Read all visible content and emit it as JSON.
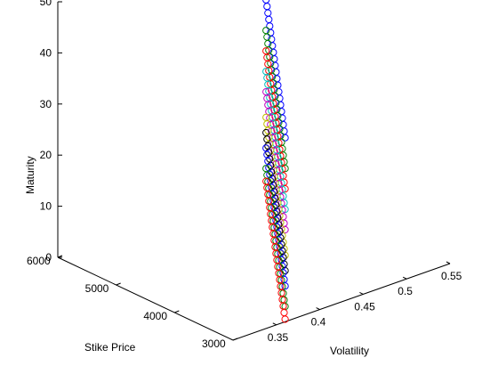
{
  "chart_data": {
    "type": "scatter3d",
    "grid": false,
    "marker": "open-circle",
    "axes": {
      "x": {
        "label": "Stike Price",
        "lim": [
          3000,
          6000
        ],
        "ticks": [
          "3000",
          "4000",
          "5000",
          "6000"
        ]
      },
      "y": {
        "label": "Volatility",
        "lim": [
          0.3,
          0.55
        ],
        "ticks": [
          "0.35",
          "0.4",
          "0.45",
          "0.5",
          "0.55"
        ]
      },
      "z": {
        "label": "Maturity",
        "lim": [
          0,
          50
        ],
        "ticks": [
          "0",
          "10",
          "20",
          "30",
          "40",
          "50"
        ]
      }
    },
    "series": [
      {
        "color": "#0000ff",
        "strike": [
          3000,
          6000
        ],
        "volatility": [
          0.36,
          0.54
        ],
        "maturity": [
          36,
          36
        ]
      },
      {
        "color": "#008000",
        "strike": [
          3000,
          6000
        ],
        "volatility": [
          0.36,
          0.54
        ],
        "maturity": [
          30,
          30
        ]
      },
      {
        "color": "#ff0000",
        "strike": [
          3000,
          6000
        ],
        "volatility": [
          0.36,
          0.54
        ],
        "maturity": [
          26,
          26
        ]
      },
      {
        "color": "#00bfbf",
        "strike": [
          3000,
          6000
        ],
        "volatility": [
          0.36,
          0.54
        ],
        "maturity": [
          22,
          22
        ]
      },
      {
        "color": "#bf00bf",
        "strike": [
          3000,
          6000
        ],
        "volatility": [
          0.36,
          0.54
        ],
        "maturity": [
          18,
          18
        ]
      },
      {
        "color": "#bfbf00",
        "strike": [
          3000,
          6000
        ],
        "volatility": [
          0.36,
          0.54
        ],
        "maturity": [
          13,
          13
        ]
      },
      {
        "color": "#000000",
        "strike": [
          3000,
          6000
        ],
        "volatility": [
          0.36,
          0.54
        ],
        "maturity": [
          10,
          10
        ]
      },
      {
        "color": "#0000ff",
        "strike": [
          3000,
          6000
        ],
        "volatility": [
          0.36,
          0.54
        ],
        "maturity": [
          7,
          7
        ]
      },
      {
        "color": "#008000",
        "strike": [
          3000,
          6000
        ],
        "volatility": [
          0.36,
          0.54
        ],
        "maturity": [
          3,
          3
        ]
      },
      {
        "color": "#ff0000",
        "strike": [
          3000,
          6000
        ],
        "volatility": [
          0.36,
          0.54
        ],
        "maturity": [
          0.5,
          0.5
        ]
      }
    ]
  }
}
